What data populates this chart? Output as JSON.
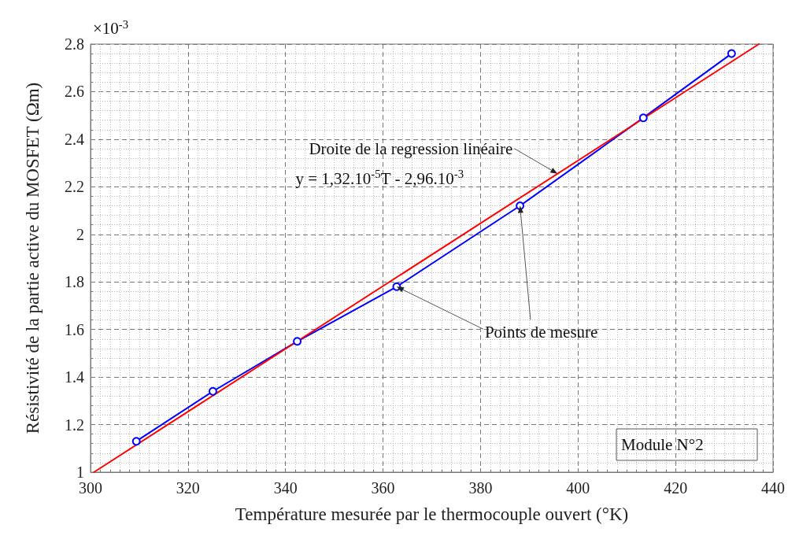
{
  "chart_data": {
    "type": "line",
    "xlabel": "Température mesurée par le thermocouple ouvert (°K)",
    "ylabel": "Résistivité de la partie active du MOSFET (Ωm)",
    "xlim": [
      300,
      440
    ],
    "xticks": [
      300,
      320,
      340,
      360,
      380,
      400,
      420,
      440
    ],
    "ylim": [
      1,
      2.8
    ],
    "yticks": [
      1,
      1.2,
      1.4,
      1.6,
      1.8,
      2,
      2.2,
      2.4,
      2.6,
      2.8
    ],
    "grid": true,
    "series": [
      {
        "color": "#0000ff",
        "marker": "circle",
        "x": [
          309.4,
          325.1,
          342.4,
          362.8,
          388.1,
          413.4,
          431.5
        ],
        "values": [
          1.13,
          1.34,
          1.55,
          1.78,
          2.12,
          2.49,
          2.76
        ]
      },
      {
        "color": "#ff0000",
        "marker": "none",
        "x": [
          300.7,
          437.1
        ],
        "values": [
          1.0,
          2.8
        ]
      }
    ],
    "annotations": [
      "×10$^{-3}$",
      {
        "text": "Droite de la regression linéaire",
        "x": 395.8,
        "y": 2.255
      },
      "y = 1,32.10$^{-5}$T - 2,96.10$^{-3}$",
      {
        "text": "Points de mesure",
        "x": 362.8,
        "y": 1.78
      },
      "Module N°2"
    ]
  }
}
